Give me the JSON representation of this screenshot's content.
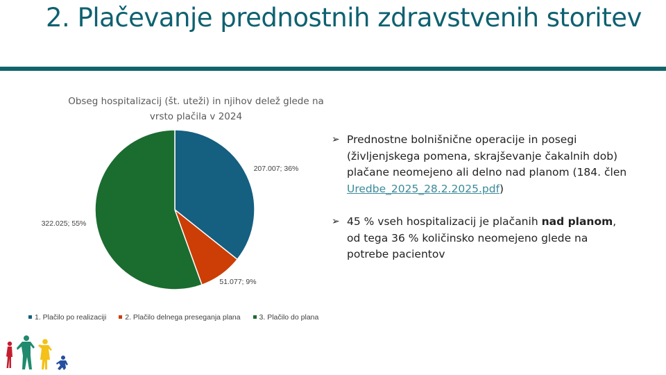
{
  "slide": {
    "title": "2. Plačevanje prednostnih zdravstvenih storitev"
  },
  "chart_data": {
    "type": "pie",
    "title": "Obseg hospitalizacij (št. uteži) in njihov delež glede na vrsto plačila v 2024",
    "categories": [
      "1. Plačilo po realizaciji",
      "2. Plačilo delnega preseganja plana",
      "3. Plačilo do plana"
    ],
    "values": [
      207007,
      51077,
      322025
    ],
    "data_labels": [
      "207.007; 36%",
      "51.077; 9%",
      "322.025; 55%"
    ],
    "colors": [
      "#155f81",
      "#cc3e05",
      "#1b6c2f"
    ],
    "legend_position": "bottom"
  },
  "bullets": {
    "b1_text": "Prednostne bolnišnične operacije in posegi (življenjskega pomena, skrajševanje čakalnih dob) plačane neomejeno ali delno nad planom (184. člen ",
    "b1_link": "Uredbe_2025_28.2.2025.pdf",
    "b1_end": ")",
    "b2_pre": "45 % vseh hospitalizacij je plačanih ",
    "b2_bold": "nad planom",
    "b2_post": ", od tega 36 % količinsko neomejeno glede na potrebe pacientov",
    "arrow_icon": "arrow-bullet-icon"
  },
  "logo": {
    "name": "people-figures-logo",
    "colors": [
      "#c41e2e",
      "#1f8a6e",
      "#f3c117",
      "#2450a0"
    ]
  }
}
